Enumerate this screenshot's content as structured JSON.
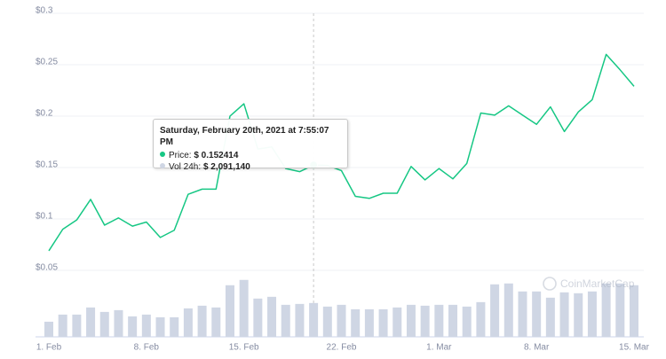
{
  "chart_data": {
    "type": "line",
    "categories": [
      "1. Feb",
      null,
      null,
      null,
      null,
      null,
      null,
      "8. Feb",
      null,
      null,
      null,
      null,
      null,
      null,
      "15. Feb",
      null,
      null,
      null,
      null,
      null,
      null,
      "22. Feb",
      null,
      null,
      null,
      null,
      null,
      null,
      "1. Mar",
      null,
      null,
      null,
      null,
      null,
      null,
      "8. Mar",
      null,
      null,
      null,
      null,
      null,
      null,
      "15. Mar"
    ],
    "series": [
      {
        "color": "#16c784",
        "values": [
          0.069,
          0.09,
          0.099,
          0.119,
          0.094,
          0.101,
          0.093,
          0.097,
          0.082,
          0.089,
          0.124,
          0.129,
          0.129,
          0.2,
          0.212,
          0.168,
          0.17,
          0.149,
          0.146,
          0.152414,
          0.152,
          0.147,
          0.122,
          0.12,
          0.125,
          0.125,
          0.151,
          0.138,
          0.149,
          0.139,
          0.154,
          0.203,
          0.201,
          0.21,
          0.201,
          0.192,
          0.209,
          0.185,
          0.204,
          0.216,
          0.26,
          0.245,
          0.229
        ]
      },
      {
        "type": "bar",
        "axis": "y2",
        "color": "#cfd6e4",
        "values": [
          935000,
          1375000,
          1375000,
          1815000,
          1540000,
          1650000,
          1265000,
          1375000,
          1210000,
          1210000,
          1760000,
          1925000,
          1815000,
          3190000,
          3520000,
          2365000,
          2475000,
          1980000,
          2035000,
          2091140,
          1870000,
          1980000,
          1705000,
          1705000,
          1705000,
          1815000,
          1980000,
          1925000,
          1980000,
          1980000,
          1870000,
          2145000,
          3245000,
          3300000,
          2805000,
          2805000,
          2420000,
          2750000,
          2695000,
          2805000,
          3300000,
          3300000,
          3190000
        ]
      }
    ],
    "ylim": [
      0.05,
      0.3
    ],
    "yticks": [
      {
        "value": 0.05,
        "label": "$0.05"
      },
      {
        "value": 0.1,
        "label": "$0.1"
      },
      {
        "value": 0.15,
        "label": "$0.15"
      },
      {
        "value": 0.2,
        "label": "$0.2"
      },
      {
        "value": 0.25,
        "label": "$0.25"
      },
      {
        "value": 0.3,
        "label": "$0.3"
      }
    ],
    "y2lim": [
      0,
      4000000
    ],
    "grid": true,
    "hover_index": 19,
    "tooltip": {
      "title": "Saturday, February 20th, 2021 at 7:55:07 PM",
      "rows": [
        {
          "label": "Price:",
          "value": "$ 0.152414"
        },
        {
          "label": "Vol 24h:",
          "value": "$ 2,091,140"
        }
      ]
    },
    "watermark": "CoinMarketCap"
  }
}
